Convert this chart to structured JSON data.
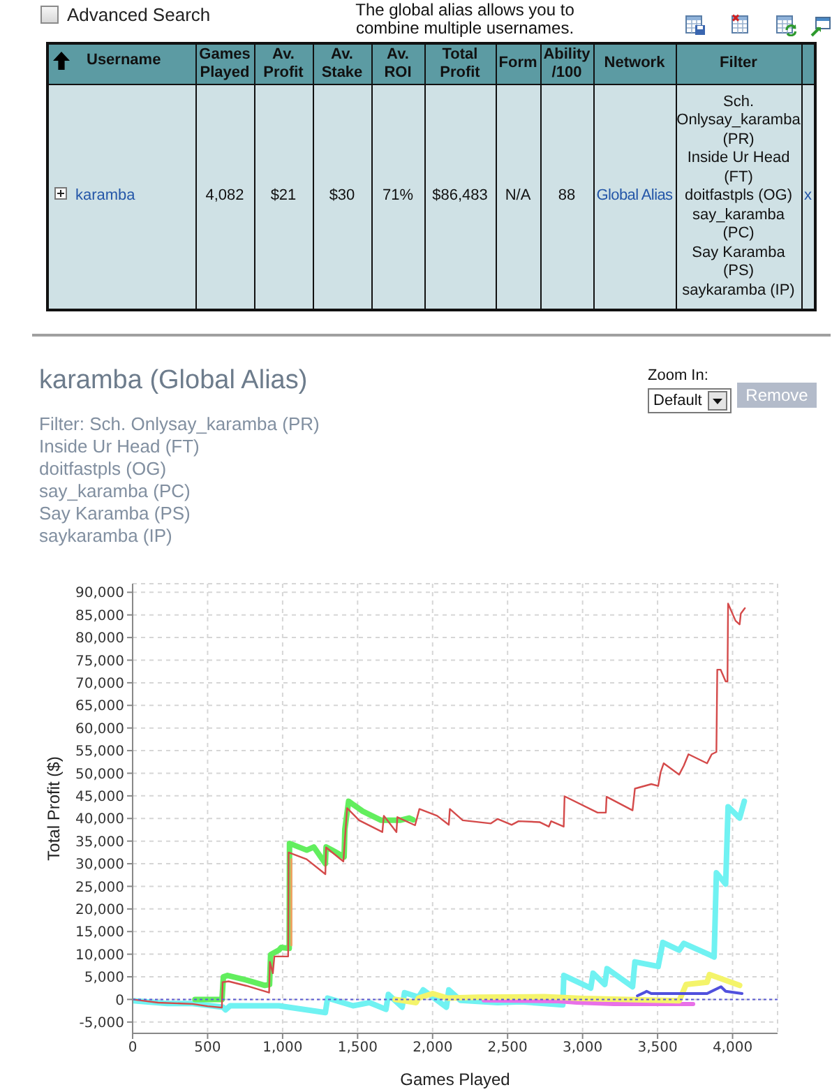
{
  "chart_data": [
    {
      "type": "other",
      "annotations": [
        "Advanced Search",
        "The global alias allows you to combine multiple usernames.",
        "Username",
        "Games Played",
        "Av. Profit",
        "Av. Stake",
        "Av. ROI",
        "Total Profit",
        "Form",
        "Ability /100",
        "Network",
        "Filter",
        "karamba",
        "4,082",
        "$21",
        "$30",
        "71%",
        "$86,483",
        "N/A",
        "88",
        "Global Alias",
        "Sch. Onlysay_karamba (PR)\nInside Ur Head (FT)\ndoitfastpls (OG)\nsay_karamba (PC)\nSay Karamba (PS)\nsaykaramba (IP)",
        "x"
      ]
    },
    {
      "type": "line",
      "title": "karamba (Global Alias)",
      "subtitle": "Filter: Sch. Onlysay_karamba (PR)\nInside Ur Head (FT)\ndoitfastpls (OG)\nsay_karamba (PC)\nSay Karamba (PS)\nsaykaramba (IP)",
      "annotations": [
        "Zoom In:",
        "Default",
        "Remove"
      ],
      "xlabel": "Games Played",
      "ylabel": "Total Profit ($)",
      "xlim": [
        0,
        4300
      ],
      "xticks": [
        0,
        500,
        {
          "value": 1000,
          "label": "1,000"
        },
        {
          "value": 1500,
          "label": "1,500"
        },
        {
          "value": 2000,
          "label": "2,000"
        },
        {
          "value": 2500,
          "label": "2,500"
        },
        {
          "value": 3000,
          "label": "3,000"
        },
        {
          "value": 3500,
          "label": "3,500"
        },
        {
          "value": 4000,
          "label": "4,000"
        }
      ],
      "ylim": [
        -7500,
        91900
      ],
      "yticks": [
        {
          "value": -5000,
          "label": "-5,000"
        },
        0,
        {
          "value": 5000,
          "label": "5,000"
        },
        {
          "value": 10000,
          "label": "10,000"
        },
        {
          "value": 15000,
          "label": "15,000"
        },
        {
          "value": 20000,
          "label": "20,000"
        },
        {
          "value": 25000,
          "label": "25,000"
        },
        {
          "value": 30000,
          "label": "30,000"
        },
        {
          "value": 35000,
          "label": "35,000"
        },
        {
          "value": 40000,
          "label": "40,000"
        },
        {
          "value": 45000,
          "label": "45,000"
        },
        {
          "value": 50000,
          "label": "50,000"
        },
        {
          "value": 55000,
          "label": "55,000"
        },
        {
          "value": 60000,
          "label": "60,000"
        },
        {
          "value": 65000,
          "label": "65,000"
        },
        {
          "value": 70000,
          "label": "70,000"
        },
        {
          "value": 75000,
          "label": "75,000"
        },
        {
          "value": 80000,
          "label": "80,000"
        },
        {
          "value": 85000,
          "label": "85,000"
        },
        {
          "value": 90000,
          "label": "90,000"
        }
      ],
      "grid": true,
      "ref_lines": [
        {
          "axis": "y",
          "value": 0,
          "color": "#5a5ad2",
          "line_style": "dotted"
        }
      ],
      "series": [
        {
          "color": "#70f2f2",
          "x": [
            0,
            230,
            400,
            602,
            620,
            650,
            975,
            1285,
            1300,
            1470,
            1580,
            1689,
            1705,
            1797,
            1813,
            1906,
            1937,
            2092,
            2108,
            2186,
            2434,
            2589,
            2744,
            2868,
            2875,
            3054,
            3070,
            3148,
            3163,
            3333,
            3349,
            3504,
            3535,
            3644,
            3675,
            3877,
            3892,
            3954,
            3970,
            4047,
            4078
          ],
          "values": [
            -300,
            -900,
            -900,
            -1700,
            -2300,
            -1400,
            -1400,
            -2900,
            300,
            -1400,
            -700,
            -2200,
            1100,
            -1700,
            1500,
            500,
            2100,
            -1700,
            2100,
            -200,
            -700,
            -500,
            -900,
            -1200,
            5300,
            2500,
            5800,
            3300,
            6800,
            2800,
            8300,
            7300,
            12600,
            10900,
            12400,
            9400,
            28000,
            25500,
            42600,
            40100,
            43800
          ]
        },
        {
          "color": "#e870e8",
          "x": [
            2341,
            2837,
            2961,
            3210,
            3737
          ],
          "values": [
            -200,
            -400,
            -700,
            -1000,
            -1000
          ]
        },
        {
          "color": "#f4f46a",
          "x": [
            1751,
            1890,
            1906,
            2000,
            2100,
            2300,
            2744,
            3000,
            3644,
            3690,
            3830,
            3846,
            4047
          ],
          "values": [
            0,
            -700,
            300,
            1300,
            300,
            500,
            600,
            200,
            -300,
            3300,
            3800,
            5500,
            3100
          ]
        },
        {
          "color": "#5050dd",
          "x": [
            3365,
            3411,
            3427,
            3458,
            3830,
            3923,
            3954,
            4063
          ],
          "values": [
            800,
            1500,
            1800,
            1300,
            1300,
            2800,
            1800,
            1300
          ]
        },
        {
          "color": "#62ee5e",
          "x": [
            416,
            596,
            605,
            633,
            758,
            882,
            913,
            920,
            975,
            991,
            1044,
            1046,
            1161,
            1208,
            1285,
            1290,
            1330,
            1410,
            1415,
            1440,
            1534,
            1657,
            1782,
            1844,
            1870
          ],
          "values": [
            0,
            0,
            5000,
            5300,
            4300,
            3100,
            3300,
            9900,
            10900,
            11500,
            11300,
            34500,
            33000,
            33700,
            30000,
            33700,
            33000,
            31500,
            37600,
            43800,
            41600,
            39600,
            39600,
            40100,
            39700
          ]
        },
        {
          "color": "#f0a060",
          "x": [
            1058,
            1058
          ],
          "values": [
            12000,
            31000
          ]
        },
        {
          "color": "#d44a4a",
          "x": [
            0,
            170,
            400,
            500,
            595,
            600,
            640,
            760,
            910,
            915,
            935,
            945,
            1037,
            1040,
            1160,
            1285,
            1290,
            1405,
            1430,
            1510,
            1665,
            1675,
            1759,
            1765,
            1883,
            1912,
            2030,
            2108,
            2115,
            2201,
            2387,
            2433,
            2527,
            2573,
            2713,
            2775,
            2790,
            2874,
            2880,
            3100,
            3155,
            3160,
            3333,
            3349,
            3458,
            3504,
            3520,
            3541,
            3644,
            3675,
            3706,
            3830,
            3861,
            3892,
            3898,
            3920,
            3954,
            3966,
            3970,
            4020,
            4047,
            4055,
            4082
          ],
          "values": [
            0,
            -700,
            -1000,
            -1500,
            -1800,
            3800,
            4000,
            3000,
            1500,
            8300,
            5800,
            9500,
            9500,
            32500,
            31000,
            27700,
            33600,
            30500,
            42300,
            39600,
            37000,
            40600,
            37000,
            40300,
            38500,
            42100,
            40600,
            38600,
            42100,
            39600,
            38900,
            39900,
            38600,
            39400,
            39200,
            38200,
            39400,
            38200,
            44900,
            41300,
            41300,
            44800,
            41800,
            46600,
            47600,
            47200,
            50200,
            52200,
            49700,
            51700,
            54200,
            52200,
            54200,
            54700,
            72900,
            72900,
            70300,
            70300,
            87500,
            83700,
            82900,
            85300,
            86500
          ]
        }
      ]
    }
  ]
}
